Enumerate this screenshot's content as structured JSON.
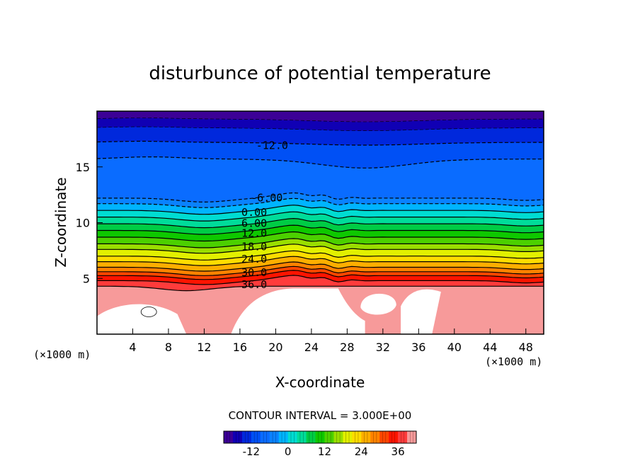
{
  "chart_data": {
    "type": "contour",
    "title": "disturbunce of potential temperature",
    "xlabel": "X-coordinate",
    "ylabel": "Z-coordinate",
    "x_unit_left": "(×1000 m)",
    "x_unit_right": "(×1000 m)",
    "xlim": [
      0,
      50
    ],
    "ylim": [
      0,
      20
    ],
    "x_ticks": [
      4,
      8,
      12,
      16,
      20,
      24,
      28,
      32,
      36,
      40,
      44,
      48
    ],
    "x_tick_labels": [
      "4",
      "8",
      "12",
      "16",
      "20",
      "24",
      "28",
      "32",
      "36",
      "40",
      "44",
      "48"
    ],
    "y_ticks": [
      5,
      10,
      15
    ],
    "y_tick_labels": [
      "5",
      "10",
      "15"
    ],
    "contour_interval_label": "CONTOUR INTERVAL = 3.000E+00",
    "contour_interval": 3.0,
    "contour_labels": [
      {
        "value": -12,
        "text": "-12.0",
        "x": 19.6,
        "z": 17.0
      },
      {
        "value": -6,
        "text": "-6.00",
        "x": 19.0,
        "z": 12.3
      },
      {
        "value": 0,
        "text": "0.00",
        "x": 17.6,
        "z": 11.0
      },
      {
        "value": 6,
        "text": "6.00",
        "x": 17.6,
        "z": 10.0
      },
      {
        "value": 12,
        "text": "12.0",
        "x": 17.6,
        "z": 9.1
      },
      {
        "value": 18,
        "text": "18.0",
        "x": 17.6,
        "z": 7.9
      },
      {
        "value": 24,
        "text": "24.0",
        "x": 17.6,
        "z": 6.8
      },
      {
        "value": 30,
        "text": "30.0",
        "x": 17.6,
        "z": 5.6
      },
      {
        "value": 36,
        "text": "36.0",
        "x": 17.6,
        "z": 4.5
      }
    ],
    "layers": [
      {
        "value": 39,
        "color": "#f79a9a",
        "z": 4.3
      },
      {
        "value": 36,
        "color": "#ff3b3b",
        "z": 4.8
      },
      {
        "value": 33,
        "color": "#ff1400",
        "z": 5.25
      },
      {
        "value": 30,
        "color": "#ff4600",
        "z": 5.6
      },
      {
        "value": 27,
        "color": "#ff8200",
        "z": 6.0
      },
      {
        "value": 24,
        "color": "#ffae00",
        "z": 6.5
      },
      {
        "value": 21,
        "color": "#ffdc00",
        "z": 7.0
      },
      {
        "value": 18,
        "color": "#e2f000",
        "z": 7.6
      },
      {
        "value": 15,
        "color": "#9ade00",
        "z": 8.1
      },
      {
        "value": 12,
        "color": "#4cd000",
        "z": 8.7
      },
      {
        "value": 9,
        "color": "#0ec800",
        "z": 9.3
      },
      {
        "value": 6,
        "color": "#00cc45",
        "z": 9.9
      },
      {
        "value": 3,
        "color": "#00dc9a",
        "z": 10.5
      },
      {
        "value": 0,
        "color": "#00dcd2",
        "z": 11.1
      },
      {
        "value": -3,
        "color": "#00b4ff",
        "z": 11.7
      },
      {
        "value": -6,
        "color": "#0a82ff",
        "z": 12.2
      },
      {
        "value": -9,
        "color": "#0a6cff",
        "z": 15.7
      },
      {
        "value": -12,
        "color": "#0050f5",
        "z": 17.2
      },
      {
        "value": -15,
        "color": "#0028dc",
        "z": 18.5
      },
      {
        "value": -18,
        "color": "#1000b4",
        "z": 19.3
      },
      {
        "value": -21,
        "color": "#3c0096",
        "z": 20.0
      }
    ],
    "colorbar": {
      "ticks": [
        -12,
        0,
        12,
        24,
        36
      ],
      "tick_labels": [
        "-12",
        "0",
        "12",
        "24",
        "36"
      ],
      "min": -21,
      "max": 42,
      "colors": [
        "#3c0096",
        "#1000b4",
        "#0028dc",
        "#0050f5",
        "#0a6cff",
        "#0a82ff",
        "#00b4ff",
        "#00dcd2",
        "#00dc9a",
        "#00cc45",
        "#0ec800",
        "#4cd000",
        "#9ade00",
        "#e2f000",
        "#ffdc00",
        "#ffae00",
        "#ff8200",
        "#ff4600",
        "#ff1400",
        "#ff3b3b",
        "#f79a9a"
      ]
    }
  }
}
